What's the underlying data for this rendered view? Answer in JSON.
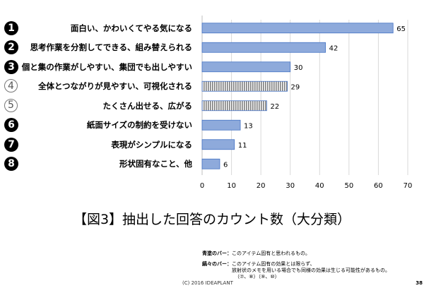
{
  "chart_data": {
    "type": "bar",
    "orientation": "horizontal",
    "categories": [
      "面白い、かわいくてやる気になる",
      "思考作業を分割してできる、組み替えられる",
      "個と集の作業がしやすい、集団でも出しやすい",
      "全体とつながりが見やすい、可視化される",
      "たくさん出せる、広がる",
      "紙面サイズの制約を受けない",
      "表現がシンプルになる",
      "形状固有なこと、他"
    ],
    "markers": [
      "❶",
      "❷",
      "❸",
      "④",
      "⑤",
      "❻",
      "❼",
      "❽"
    ],
    "values": [
      65,
      42,
      30,
      29,
      22,
      13,
      11,
      6
    ],
    "styles": [
      "solid",
      "solid",
      "solid",
      "striped",
      "striped",
      "solid",
      "solid",
      "solid"
    ],
    "xlim": [
      0,
      70
    ],
    "ticks": [
      "0",
      "10",
      "20",
      "30",
      "40",
      "50",
      "60",
      "70"
    ],
    "grid": true,
    "title": "【図3】抽出した回答のカウント数（大分類）",
    "colors": {
      "solid": "#8eaadb",
      "border": "#4472c4",
      "stripe": "#7f7f7f"
    }
  },
  "notes": {
    "blue_label": "青塗のバー：",
    "blue_text": "このアイテム固有と思われるもの。",
    "stripe_label": "縞々のバー：",
    "stripe_text1": "このアイテム固有の効果とは限らず、",
    "stripe_text2": "放射状のメモを用いる場合でも同様の効果は生じる可能性があるもの。",
    "stripe_text3": "（⑦、⑧）（⑨、⑩）"
  },
  "footer": {
    "copyright": "(C) 2016 IDEAPLANT",
    "page": "38"
  }
}
